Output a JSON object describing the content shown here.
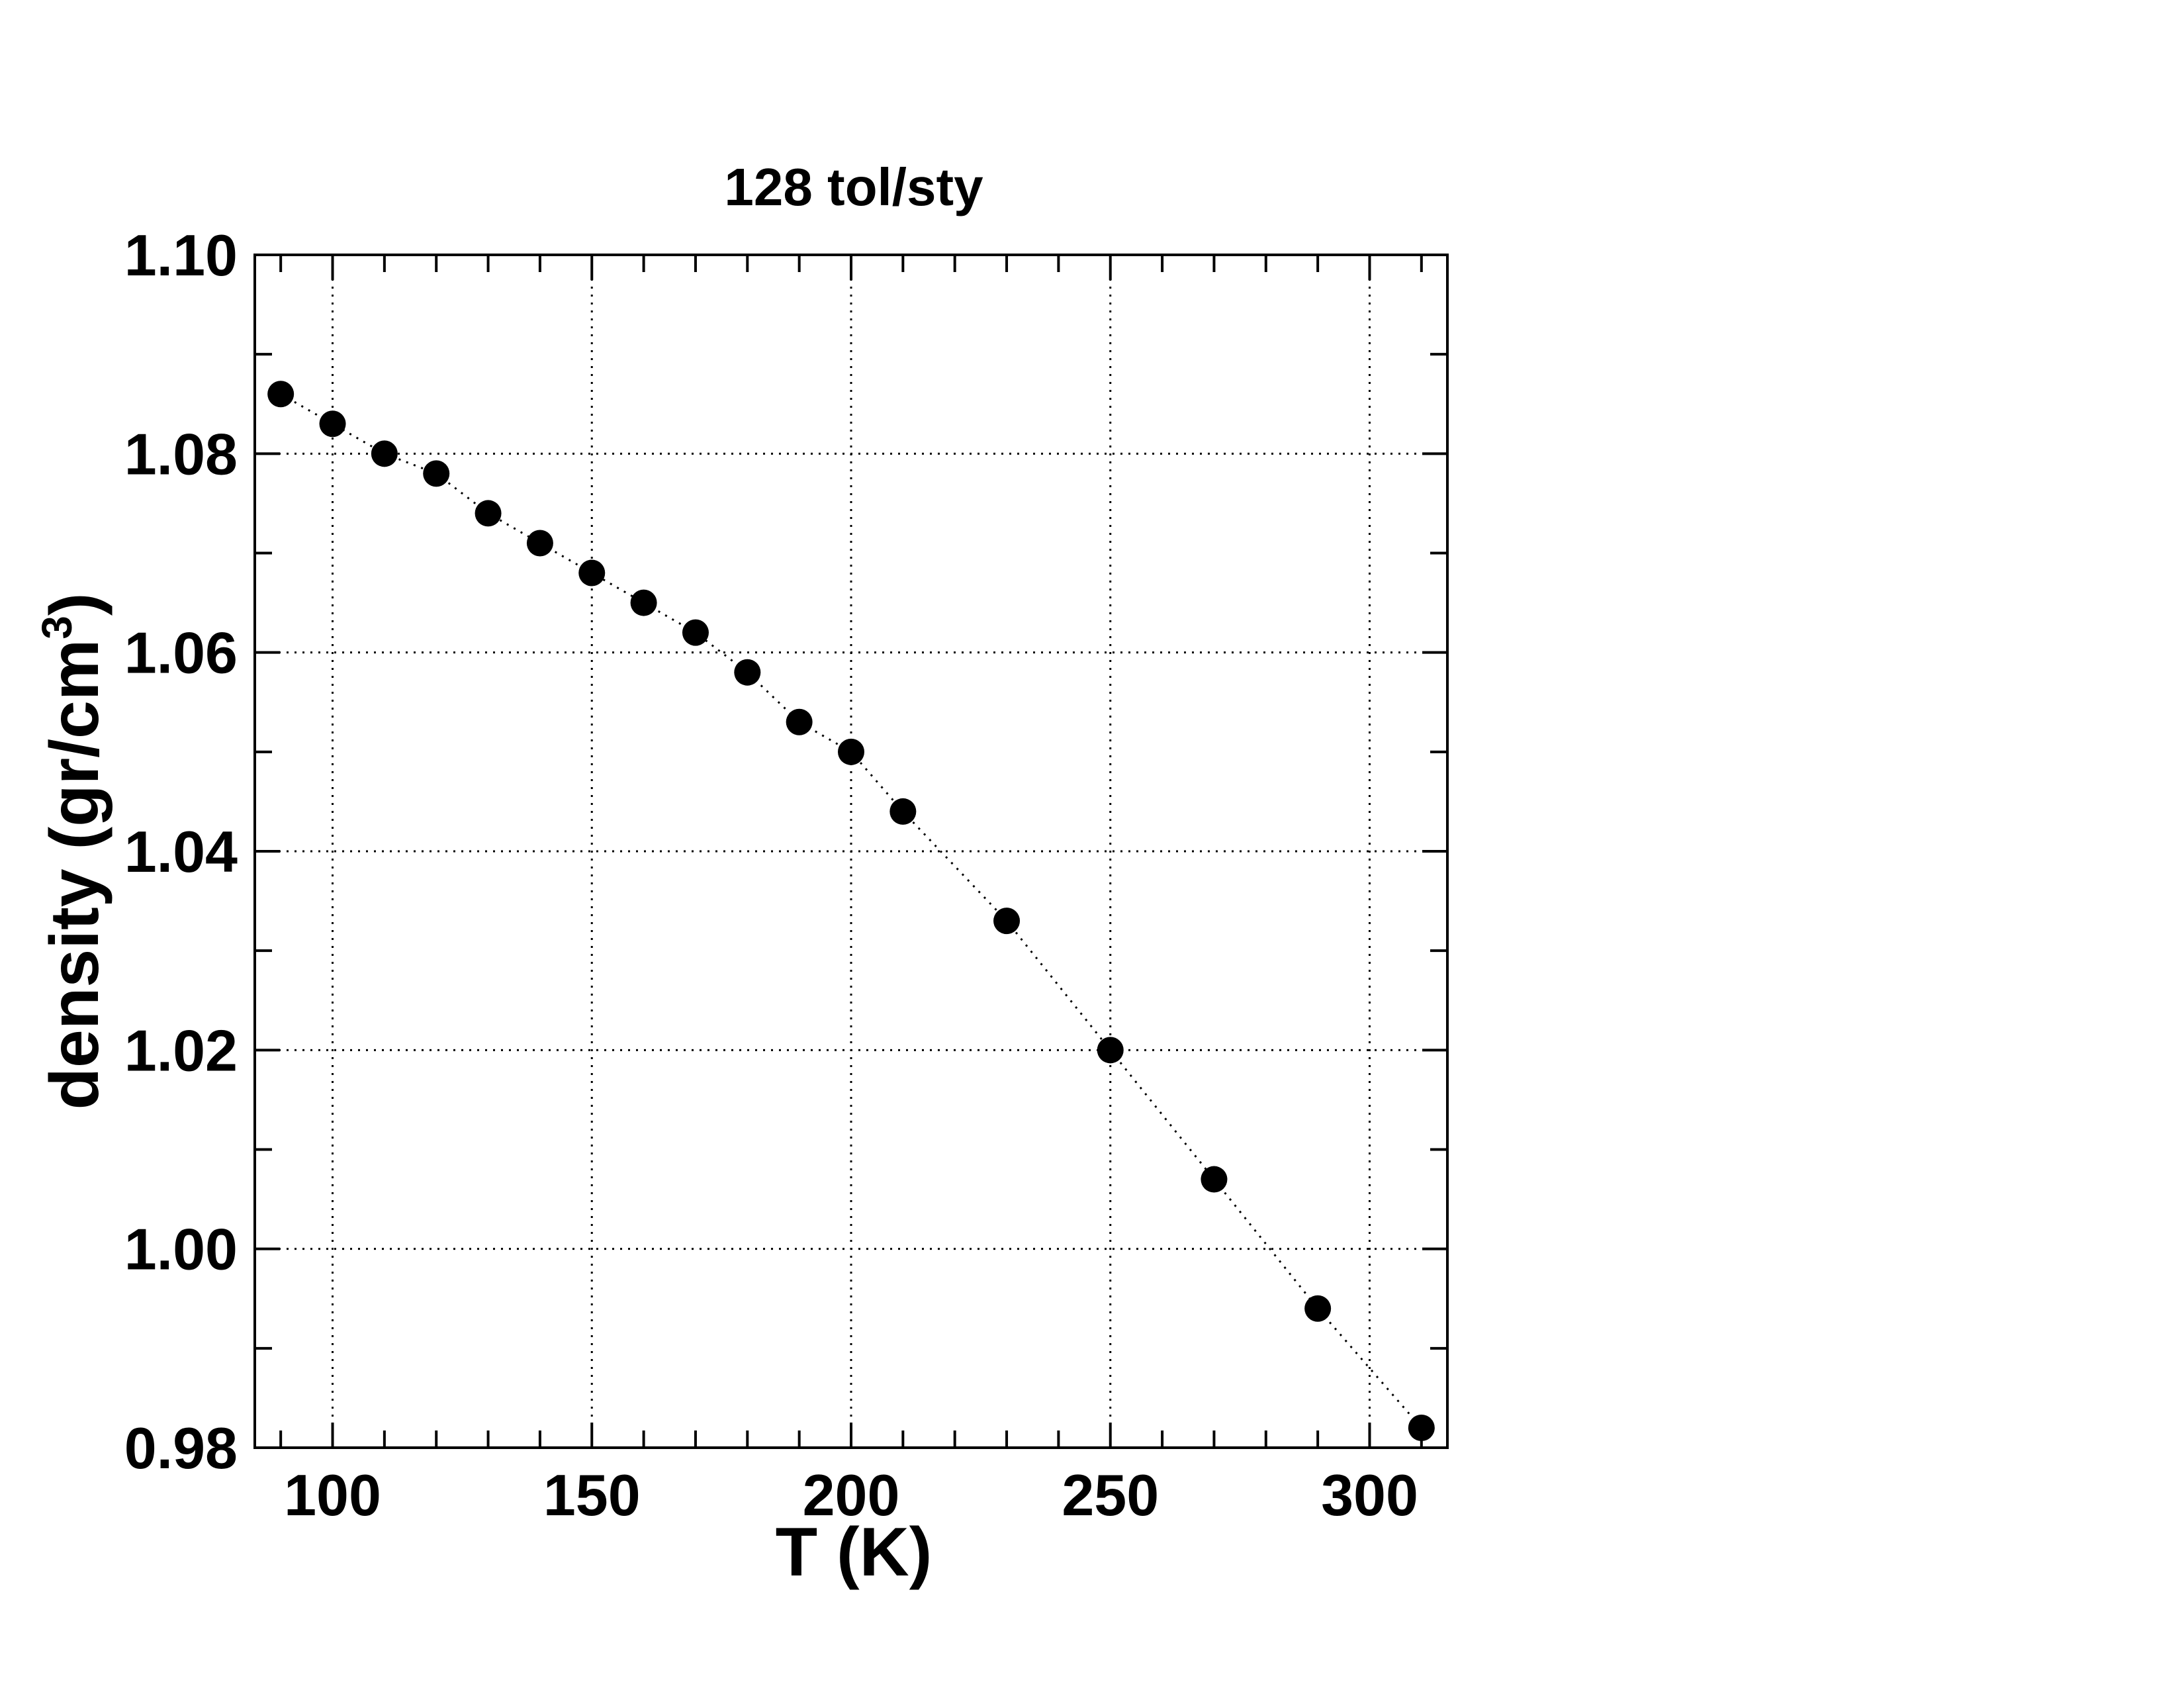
{
  "chart_data": {
    "type": "scatter",
    "title": "128 tol/sty",
    "xlabel": "T (K)",
    "ylabel": {
      "main": "density (gr/cm",
      "sup": "3",
      "close": ")"
    },
    "xlim": [
      85,
      315
    ],
    "ylim": [
      0.98,
      1.1
    ],
    "x_ticks": [
      100,
      150,
      200,
      250,
      300
    ],
    "x_tick_labels": [
      "100",
      "150",
      "200",
      "250",
      "300"
    ],
    "x_minor_step": 10,
    "y_ticks": [
      0.98,
      1.0,
      1.02,
      1.04,
      1.06,
      1.08,
      1.1
    ],
    "y_tick_labels": [
      "0.98",
      "1.00",
      "1.02",
      "1.04",
      "1.06",
      "1.08",
      "1.10"
    ],
    "y_minor_step": 0.01,
    "grid": true,
    "grid_style": "dotted",
    "connect_points": "dotted",
    "marker": "filled-circle",
    "color": "#000000",
    "series": [
      {
        "x": [
          90,
          100,
          110,
          120,
          130,
          140,
          150,
          160,
          170,
          180,
          190,
          200,
          210,
          230,
          250,
          270,
          290,
          310
        ],
        "y": [
          1.086,
          1.083,
          1.08,
          1.078,
          1.074,
          1.071,
          1.068,
          1.065,
          1.062,
          1.058,
          1.053,
          1.05,
          1.044,
          1.033,
          1.02,
          1.007,
          0.994,
          0.982
        ]
      }
    ]
  }
}
